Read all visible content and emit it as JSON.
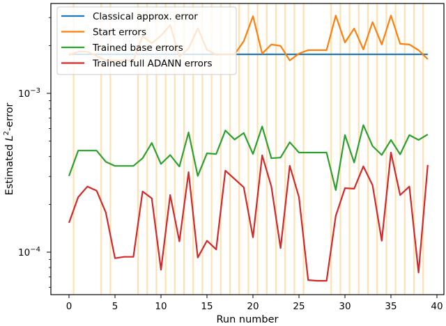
{
  "chart_data": {
    "type": "line",
    "title": "",
    "xlabel": "Run number",
    "ylabel": "Estimated L²-error",
    "ylabel_parts": {
      "pre": "Estimated ",
      "italic": "L",
      "sup": "2",
      "post": "-error"
    },
    "yscale": "log",
    "ylim": [
      5.2e-05,
      0.0037
    ],
    "xlim": [
      -2,
      41
    ],
    "xticks": [
      0,
      5,
      10,
      15,
      20,
      25,
      30,
      35,
      40
    ],
    "yticks": [
      {
        "value": 0.001,
        "label_base": "10",
        "label_exp": "−3"
      },
      {
        "value": 0.0001,
        "label_base": "10",
        "label_exp": "−4"
      }
    ],
    "grid": false,
    "legend_position": "upper left",
    "x": [
      0,
      1,
      2,
      3,
      4,
      5,
      6,
      7,
      8,
      9,
      10,
      11,
      12,
      13,
      14,
      15,
      16,
      17,
      18,
      19,
      20,
      21,
      22,
      23,
      24,
      25,
      26,
      27,
      28,
      29,
      30,
      31,
      32,
      33,
      34,
      35,
      36,
      37,
      38,
      39
    ],
    "series": [
      {
        "name": "Classical approx. error",
        "color": "#1f77b4",
        "values": [
          0.00176,
          0.00176,
          0.00176,
          0.00176,
          0.00176,
          0.00176,
          0.00176,
          0.00176,
          0.00176,
          0.00176,
          0.00176,
          0.00176,
          0.00176,
          0.00176,
          0.00176,
          0.00176,
          0.00176,
          0.00176,
          0.00176,
          0.00176,
          0.00176,
          0.00176,
          0.00176,
          0.00176,
          0.00176,
          0.00176,
          0.00176,
          0.00176,
          0.00176,
          0.00176,
          0.00176,
          0.00176,
          0.00176,
          0.00176,
          0.00176,
          0.00176,
          0.00176,
          0.00176,
          0.00176,
          0.00176
        ]
      },
      {
        "name": "Start errors",
        "color": "#ff7f0e",
        "values": [
          0.00174,
          0.00183,
          0.00183,
          0.00172,
          0.00161,
          0.00161,
          0.00161,
          0.00161,
          0.00229,
          0.00207,
          0.00231,
          0.00269,
          0.0017,
          0.00192,
          0.00257,
          0.00188,
          0.00175,
          0.00176,
          0.00176,
          0.00213,
          0.00306,
          0.00178,
          0.00203,
          0.00199,
          0.00161,
          0.00178,
          0.00187,
          0.00187,
          0.00187,
          0.00309,
          0.00209,
          0.00256,
          0.00189,
          0.00281,
          0.00203,
          0.00309,
          0.00205,
          0.00203,
          0.00187,
          0.00164
        ]
      },
      {
        "name": "Trained base errors",
        "color": "#2ca02c",
        "values": [
          0.000302,
          0.000436,
          0.000436,
          0.000436,
          0.000371,
          0.000349,
          0.000349,
          0.000349,
          0.00039,
          0.000487,
          0.000359,
          0.000409,
          0.000346,
          0.000568,
          0.000302,
          0.000419,
          0.000415,
          0.000584,
          0.000512,
          0.000563,
          0.000415,
          0.000619,
          0.00039,
          0.000394,
          0.000492,
          0.000424,
          0.000424,
          0.000424,
          0.000424,
          0.000246,
          0.000546,
          0.000367,
          0.000631,
          0.000466,
          0.000409,
          0.000509,
          0.000413,
          0.000546,
          0.000509,
          0.000551
        ]
      },
      {
        "name": "Trained full ADANN errors",
        "color": "#d62728",
        "values": [
          0.000153,
          0.000222,
          0.000259,
          0.000244,
          0.000178,
          9.16e-05,
          9.35e-05,
          9.35e-05,
          0.000241,
          0.000218,
          7.75e-05,
          0.000229,
          0.000117,
          0.000319,
          9.25e-05,
          0.000118,
          0.000104,
          0.000326,
          0.000289,
          0.000256,
          0.000124,
          0.000407,
          0.000259,
          0.000106,
          0.00035,
          0.000222,
          6.67e-05,
          6.6e-05,
          6.6e-05,
          0.000169,
          0.000253,
          0.000251,
          0.000347,
          0.000264,
          0.000118,
          0.000424,
          0.000229,
          0.000259,
          7.44e-05,
          0.000354
        ]
      }
    ],
    "highlight_vlines": {
      "color": "#ffe0b3",
      "x": [
        0.5,
        3.5,
        4.5,
        7.5,
        8.5,
        9.5,
        10.5,
        11.5,
        12.5,
        13.5,
        14.5,
        15.5,
        16.5,
        17.5,
        18.5,
        19.5,
        20.5,
        21.5,
        22.5,
        23.5,
        24.5,
        25.5,
        28.5,
        29.5,
        30.5,
        31.5,
        32.5,
        33.5,
        34.5,
        35.5,
        36.5,
        37.5,
        38.5
      ]
    }
  }
}
